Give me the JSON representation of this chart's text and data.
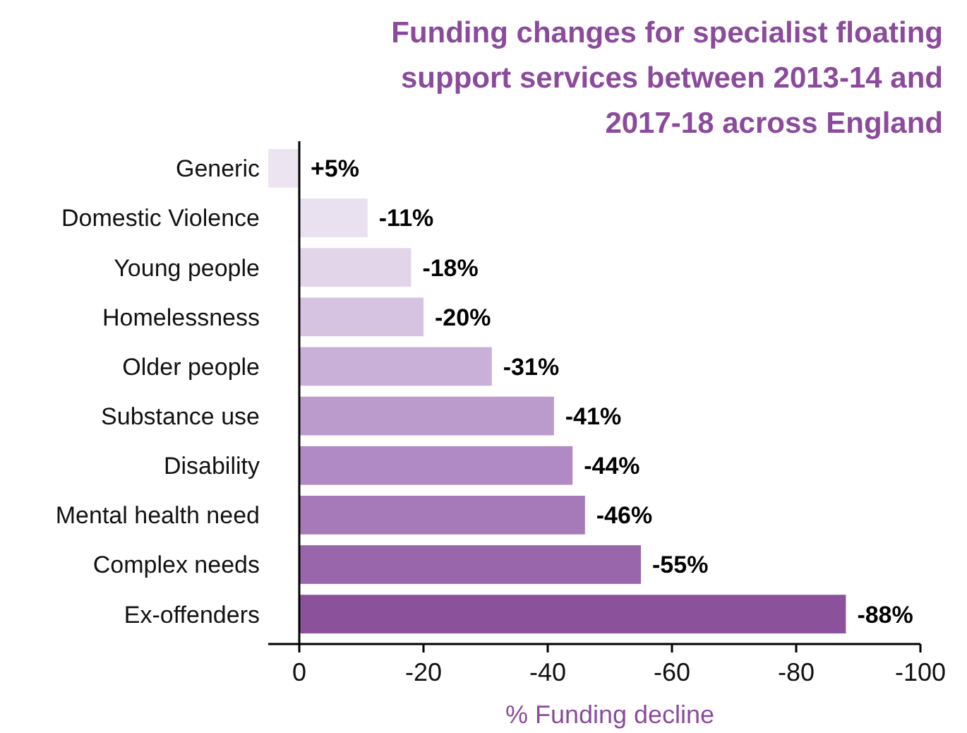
{
  "chart_data": {
    "type": "bar",
    "orientation": "horizontal",
    "title": "Funding changes for specialist floating support services between 2013-14 and 2017-18 across England",
    "xlabel": "% Funding decline",
    "categories": [
      "Generic",
      "Domestic Violence",
      "Young people",
      "Homelessness",
      "Older people",
      "Substance use",
      "Disability",
      "Mental health need",
      "Complex needs",
      "Ex-offenders"
    ],
    "values": [
      5,
      -11,
      -18,
      -20,
      -31,
      -41,
      -44,
      -46,
      -55,
      -88
    ],
    "value_labels": [
      "+5%",
      "-11%",
      "-18%",
      "-20%",
      "-31%",
      "-41%",
      "-44%",
      "-46%",
      "-55%",
      "-88%"
    ],
    "colors": [
      "#ede4f1",
      "#e9e0f0",
      "#e2d4e9",
      "#d6c3e1",
      "#c9b0d8",
      "#bb9bcb",
      "#b08ac4",
      "#a679b8",
      "#9965ab",
      "#8b519b"
    ],
    "xlim": [
      5,
      -100
    ],
    "xticks": [
      0,
      -20,
      -40,
      -60,
      -80,
      -100
    ],
    "grid": false
  }
}
